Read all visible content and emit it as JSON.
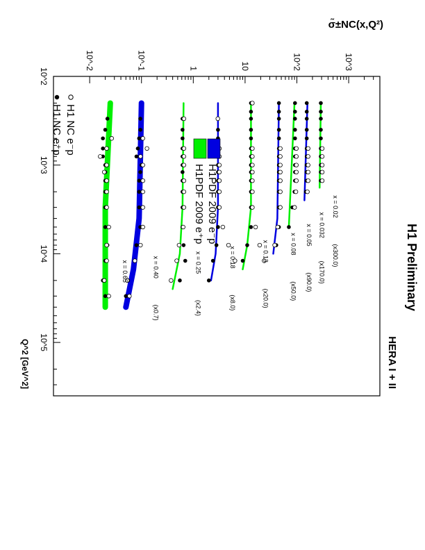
{
  "chart_data": {
    "type": "scatter",
    "title": "H1 Preliminary",
    "subtitle": "HERA I + II",
    "xlabel": "Q^2 [GeV^2]",
    "ylabel": "σ̃±NC(x,Q²)",
    "xscale": "log",
    "yscale": "log",
    "xlim": [
      100,
      400000
    ],
    "ylim": [
      0.002,
      4000
    ],
    "grid": false,
    "legend_placement": "top-left",
    "x_ticks": [
      "10^2",
      "10^3",
      "10^4",
      "10^5"
    ],
    "y_ticks": [
      "10^-2",
      "10^-1",
      "1",
      "10",
      "10^2",
      "10^3"
    ],
    "legend": {
      "markers": [
        {
          "label": "H1 NC e⁺p",
          "symbol": "filled-circle"
        },
        {
          "label": "H1 NC e⁻p",
          "symbol": "open-circle"
        }
      ],
      "bands": [
        {
          "label": "H1PDF 2009 e⁺p",
          "color": "#00f000"
        },
        {
          "label": "H1PDF 2009 e⁻p",
          "color": "#0000e0"
        }
      ]
    },
    "colors": {
      "eplus": "#00f000",
      "eminus": "#0000e0",
      "axis": "#000000"
    },
    "bins": [
      {
        "label": "x = 0.02",
        "scale": "(x300.0)",
        "ep": [
          [
            200,
            290
          ],
          [
            250,
            290
          ],
          [
            300,
            290
          ],
          [
            400,
            290
          ],
          [
            500,
            290
          ],
          [
            650,
            290
          ],
          [
            800,
            290
          ],
          [
            1000,
            290
          ],
          [
            1200,
            290
          ],
          [
            1500,
            290
          ]
        ],
        "em": [
          [
            650,
            290
          ],
          [
            800,
            290
          ],
          [
            1000,
            290
          ],
          [
            1200,
            290
          ],
          [
            1500,
            290
          ]
        ],
        "curve": [
          [
            200,
            290
          ],
          [
            1800,
            275
          ]
        ]
      },
      {
        "label": "x = 0.032",
        "scale": "(x170.0)",
        "ep": [
          [
            200,
            155
          ],
          [
            250,
            155
          ],
          [
            300,
            155
          ],
          [
            400,
            155
          ],
          [
            500,
            155
          ],
          [
            650,
            155
          ],
          [
            800,
            155
          ],
          [
            1000,
            155
          ],
          [
            1200,
            155
          ],
          [
            1500,
            155
          ],
          [
            2000,
            150
          ]
        ],
        "em": [
          [
            650,
            155
          ],
          [
            800,
            155
          ],
          [
            1000,
            155
          ],
          [
            1200,
            155
          ],
          [
            1500,
            155
          ],
          [
            2000,
            150
          ]
        ],
        "curve": [
          [
            200,
            160
          ],
          [
            2500,
            140
          ]
        ]
      },
      {
        "label": "x = 0.05",
        "scale": "(x90.0)",
        "ep": [
          [
            200,
            92
          ],
          [
            250,
            92
          ],
          [
            300,
            92
          ],
          [
            400,
            92
          ],
          [
            500,
            92
          ],
          [
            650,
            92
          ],
          [
            800,
            92
          ],
          [
            1000,
            92
          ],
          [
            1200,
            92
          ],
          [
            1500,
            92
          ],
          [
            2000,
            90
          ],
          [
            3000,
            82
          ],
          [
            5000,
            70
          ]
        ],
        "em": [
          [
            650,
            92
          ],
          [
            800,
            92
          ],
          [
            1000,
            92
          ],
          [
            1200,
            92
          ],
          [
            1500,
            92
          ],
          [
            2000,
            90
          ],
          [
            3000,
            85
          ]
        ],
        "curve": [
          [
            200,
            90
          ],
          [
            5000,
            70
          ]
        ]
      },
      {
        "label": "x = 0.08",
        "scale": "(x50.0)",
        "ep": [
          [
            200,
            45
          ],
          [
            250,
            45
          ],
          [
            300,
            45
          ],
          [
            400,
            45
          ],
          [
            500,
            45
          ],
          [
            650,
            45
          ],
          [
            800,
            45
          ],
          [
            1000,
            45
          ],
          [
            1200,
            45
          ],
          [
            1500,
            45
          ],
          [
            2000,
            45
          ],
          [
            3000,
            45
          ],
          [
            5000,
            45
          ],
          [
            8000,
            40
          ]
        ],
        "em": [
          [
            650,
            45
          ],
          [
            800,
            45
          ],
          [
            1000,
            45
          ],
          [
            1200,
            45
          ],
          [
            1500,
            45
          ],
          [
            2000,
            45
          ],
          [
            3000,
            45
          ],
          [
            5000,
            40
          ],
          [
            8000,
            35
          ]
        ],
        "curve": [
          [
            200,
            45
          ],
          [
            4000,
            42
          ],
          [
            10000,
            35
          ]
        ]
      },
      {
        "label": "x = 0.13",
        "scale": "(x20.0)",
        "ep": [
          [
            200,
            13
          ],
          [
            250,
            13
          ],
          [
            300,
            13
          ],
          [
            400,
            13
          ],
          [
            500,
            13
          ],
          [
            650,
            13
          ],
          [
            800,
            13
          ],
          [
            1000,
            13
          ],
          [
            1200,
            13
          ],
          [
            1500,
            13
          ],
          [
            2000,
            13
          ],
          [
            3000,
            13
          ],
          [
            5000,
            13
          ],
          [
            8000,
            11
          ],
          [
            12000,
            9
          ]
        ],
        "em": [
          [
            200,
            13
          ],
          [
            650,
            13
          ],
          [
            800,
            13
          ],
          [
            1000,
            13
          ],
          [
            1200,
            13
          ],
          [
            1500,
            13
          ],
          [
            2000,
            13
          ],
          [
            3000,
            13
          ],
          [
            5000,
            15
          ],
          [
            8000,
            18
          ],
          [
            12000,
            22
          ]
        ],
        "curve": [
          [
            200,
            13
          ],
          [
            3000,
            13
          ],
          [
            8000,
            11
          ],
          [
            15000,
            9
          ]
        ]
      },
      {
        "label": "x = 0.18",
        "scale": "(x8.0)",
        "ep": [
          [
            300,
            3.0
          ],
          [
            400,
            3.0
          ],
          [
            500,
            3.0
          ],
          [
            650,
            3.0
          ],
          [
            800,
            3.0
          ],
          [
            1000,
            3.0
          ],
          [
            1200,
            3.0
          ],
          [
            1500,
            3.0
          ],
          [
            2000,
            3.0
          ],
          [
            3000,
            3.0
          ],
          [
            5000,
            3.0
          ],
          [
            8000,
            2.8
          ],
          [
            12000,
            2.4
          ],
          [
            20000,
            2.0
          ]
        ],
        "em": [
          [
            300,
            2.8
          ],
          [
            650,
            3.0
          ],
          [
            800,
            3.0
          ],
          [
            1000,
            3.0
          ],
          [
            1200,
            3.0
          ],
          [
            1500,
            3.0
          ],
          [
            2000,
            3.0
          ],
          [
            3000,
            3.0
          ],
          [
            5000,
            3.5
          ],
          [
            8000,
            4.5
          ],
          [
            12000,
            6.0
          ]
        ],
        "curve": [
          [
            200,
            3.0
          ],
          [
            3000,
            3.0
          ],
          [
            10000,
            2.7
          ],
          [
            20000,
            2.2
          ]
        ]
      },
      {
        "label": "x = 0.25",
        "scale": "(x2.4)",
        "ep": [
          [
            300,
            0.62
          ],
          [
            400,
            0.62
          ],
          [
            500,
            0.62
          ],
          [
            650,
            0.62
          ],
          [
            800,
            0.62
          ],
          [
            1000,
            0.62
          ],
          [
            1200,
            0.62
          ],
          [
            1500,
            0.62
          ],
          [
            2000,
            0.62
          ],
          [
            3000,
            0.62
          ],
          [
            5000,
            0.62
          ],
          [
            8000,
            0.65
          ],
          [
            12000,
            0.7
          ],
          [
            20000,
            0.55
          ]
        ],
        "em": [
          [
            300,
            0.62
          ],
          [
            650,
            0.62
          ],
          [
            800,
            0.62
          ],
          [
            1000,
            0.62
          ],
          [
            1500,
            0.62
          ],
          [
            2000,
            0.62
          ],
          [
            3000,
            0.62
          ],
          [
            5000,
            0.6
          ],
          [
            8000,
            0.5
          ],
          [
            12000,
            0.45
          ],
          [
            20000,
            0.35
          ]
        ],
        "curve": [
          [
            200,
            0.65
          ],
          [
            3000,
            0.62
          ],
          [
            10000,
            0.55
          ],
          [
            25000,
            0.4
          ]
        ]
      },
      {
        "label": "x = 0.40",
        "scale": "(x0.7)",
        "ep": [
          [
            300,
            0.095
          ],
          [
            400,
            0.095
          ],
          [
            500,
            0.09
          ],
          [
            650,
            0.085
          ],
          [
            800,
            0.08
          ],
          [
            1000,
            0.1
          ],
          [
            1200,
            0.095
          ],
          [
            1500,
            0.09
          ],
          [
            2000,
            0.09
          ],
          [
            3000,
            0.09
          ],
          [
            5000,
            0.095
          ],
          [
            8000,
            0.08
          ],
          [
            12000,
            0.075
          ],
          [
            20000,
            0.055
          ],
          [
            30000,
            0.05
          ]
        ],
        "em": [
          [
            500,
            0.1
          ],
          [
            650,
            0.12
          ],
          [
            800,
            0.09
          ],
          [
            1000,
            0.1
          ],
          [
            1500,
            0.1
          ],
          [
            2000,
            0.1
          ],
          [
            3000,
            0.1
          ],
          [
            5000,
            0.1
          ],
          [
            8000,
            0.09
          ],
          [
            12000,
            0.07
          ],
          [
            20000,
            0.05
          ],
          [
            30000,
            0.055
          ]
        ],
        "curve": [
          [
            200,
            0.1
          ],
          [
            4000,
            0.09
          ],
          [
            15000,
            0.07
          ],
          [
            40000,
            0.05
          ]
        ]
      },
      {
        "label": "x = 0.65",
        "scale": "",
        "ep": [
          [
            300,
            0.022
          ],
          [
            400,
            0.02
          ],
          [
            500,
            0.018
          ],
          [
            650,
            0.018
          ],
          [
            800,
            0.018
          ],
          [
            1000,
            0.02
          ],
          [
            1200,
            0.02
          ],
          [
            1500,
            0.02
          ],
          [
            2000,
            0.02
          ],
          [
            3000,
            0.02
          ],
          [
            5000,
            0.02
          ],
          [
            8000,
            0.022
          ],
          [
            12000,
            0.02
          ],
          [
            20000,
            0.018
          ],
          [
            30000,
            0.02
          ]
        ],
        "em": [
          [
            500,
            0.025
          ],
          [
            650,
            0.02
          ],
          [
            800,
            0.015
          ],
          [
            1000,
            0.02
          ],
          [
            1200,
            0.018
          ],
          [
            1500,
            0.02
          ],
          [
            2000,
            0.02
          ],
          [
            3000,
            0.02
          ],
          [
            5000,
            0.022
          ],
          [
            8000,
            0.02
          ],
          [
            12000,
            0.02
          ],
          [
            20000,
            0.018
          ],
          [
            30000,
            0.022
          ]
        ],
        "curve": [
          [
            200,
            0.025
          ],
          [
            3000,
            0.02
          ],
          [
            15000,
            0.02
          ],
          [
            40000,
            0.02
          ]
        ]
      }
    ]
  }
}
